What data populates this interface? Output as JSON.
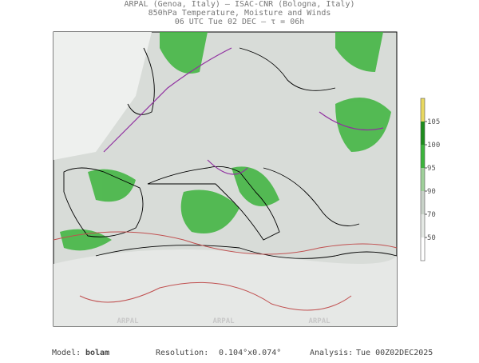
{
  "header": {
    "line1": "ARPAL (Genoa, Italy)  —  ISAC-CNR (Bologna, Italy)",
    "line2": "850hPa Temperature, Moisture and Winds",
    "line3": "06 UTC Tue 02 DEC  —  τ = 06h"
  },
  "colorbar": {
    "ticks": [
      50,
      70,
      90,
      95,
      100,
      105
    ],
    "colors": [
      "#ffffff",
      "#e4e8e4",
      "#c8d2c8",
      "#9fd09a",
      "#3cb43c",
      "#1e8c1e",
      "#e8d860"
    ]
  },
  "watermark": "ARPAL",
  "footer": {
    "model_label": "Model:",
    "model": "bolam",
    "resolution_label": "Resolution:",
    "resolution": "0.104°x0.074°",
    "analysis_label": "Analysis:",
    "analysis": "Tue 00Z02DEC2025"
  }
}
